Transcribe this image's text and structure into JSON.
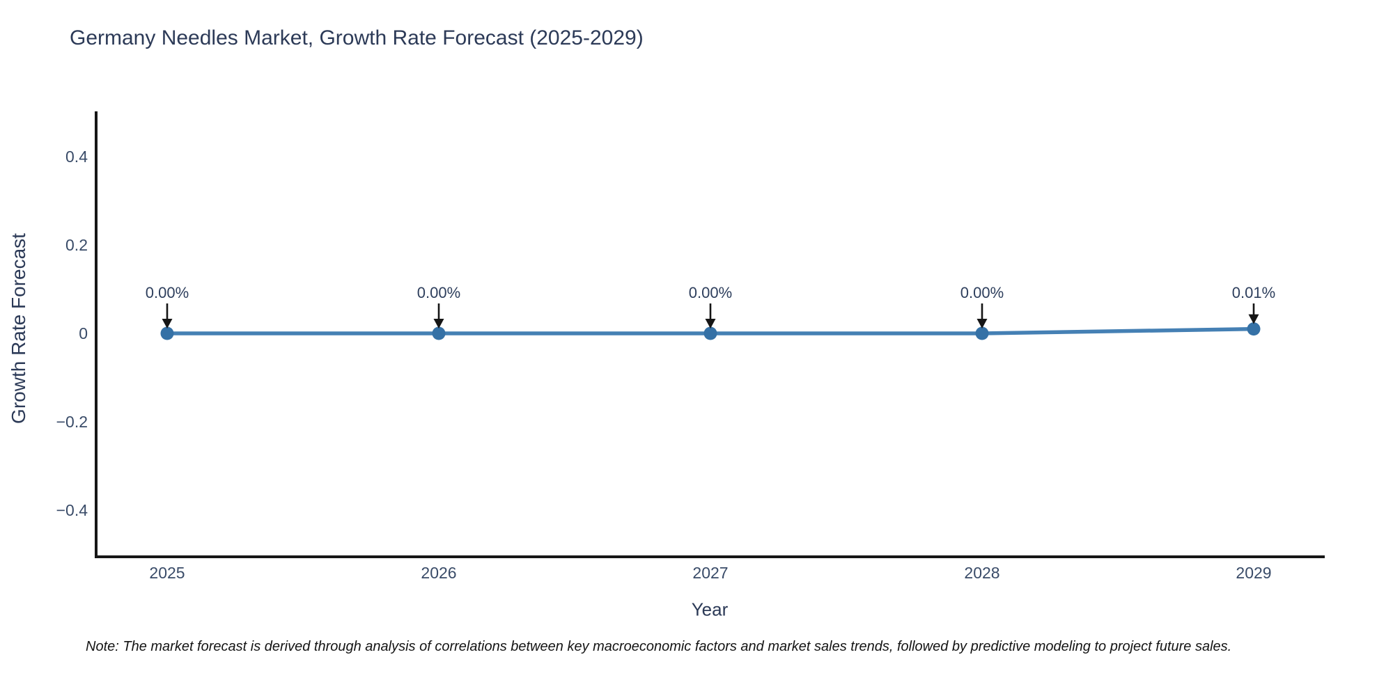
{
  "note": "Note: The market forecast is derived through analysis of correlations between key macroeconomic factors and market sales trends, followed by predictive modeling to project future sales.",
  "chart_data": {
    "type": "line",
    "title": "Germany Needles Market, Growth Rate Forecast (2025-2029)",
    "xlabel": "Year",
    "ylabel": "Growth Rate Forecast",
    "x": [
      2025,
      2026,
      2027,
      2028,
      2029
    ],
    "xtick_labels": [
      "2025",
      "2026",
      "2027",
      "2028",
      "2029"
    ],
    "values": [
      0.0,
      0.0,
      0.0,
      0.0,
      0.01
    ],
    "point_labels": [
      "0.00%",
      "0.00%",
      "0.00%",
      "0.00%",
      "0.01%"
    ],
    "yticks": [
      0.4,
      0.2,
      0,
      -0.2,
      -0.4
    ],
    "ytick_labels": [
      "0.4",
      "0.2",
      "0",
      "−0.2",
      "−0.4"
    ],
    "ylim": [
      -0.5,
      0.5
    ],
    "grid": false,
    "legend": "none",
    "colors": {
      "line": "#4580b4",
      "marker": "#3571a6",
      "arrow": "#151515",
      "axis": "#161616",
      "text": "#2d3e5c"
    }
  }
}
